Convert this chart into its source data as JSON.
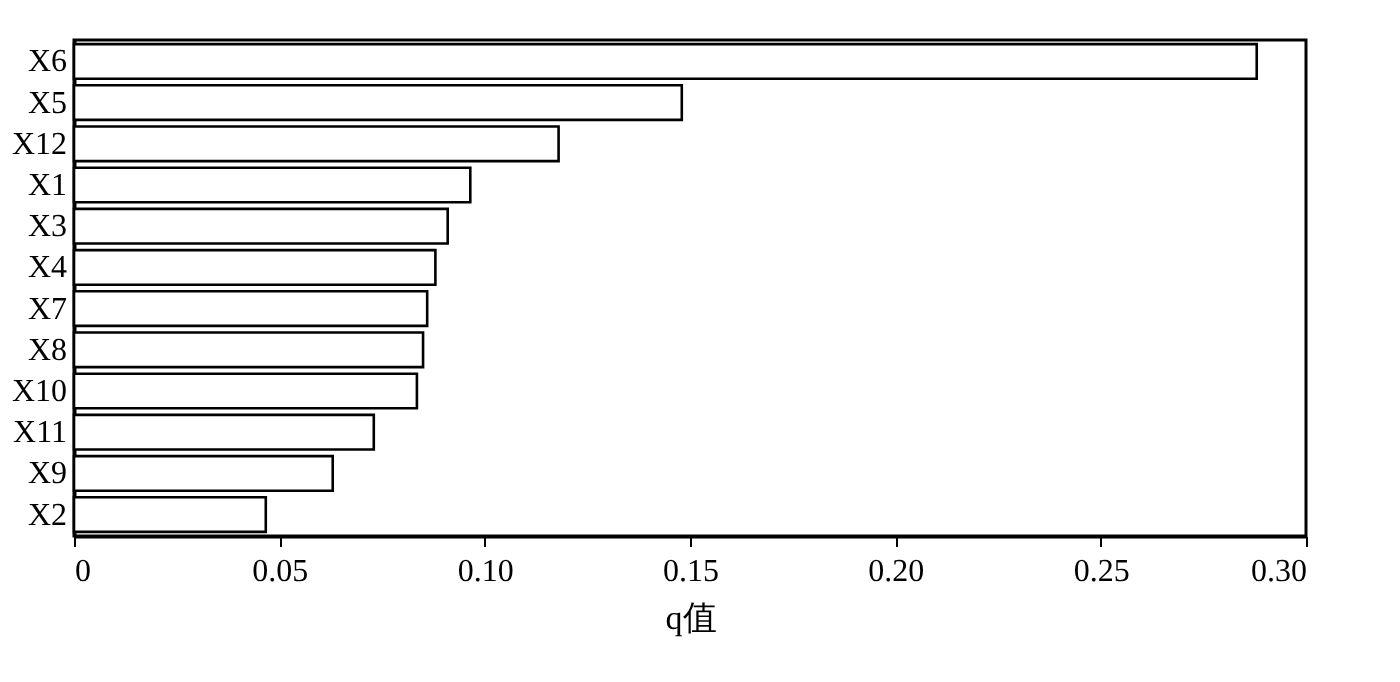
{
  "chart_data": {
    "type": "bar",
    "orientation": "horizontal",
    "xlabel": "q值",
    "categories": [
      "X6",
      "X5",
      "X12",
      "X1",
      "X3",
      "X4",
      "X7",
      "X8",
      "X10",
      "X11",
      "X9",
      "X2"
    ],
    "values": [
      0.288,
      0.148,
      0.118,
      0.0965,
      0.091,
      0.088,
      0.086,
      0.085,
      0.0835,
      0.073,
      0.063,
      0.0467
    ],
    "color": "#ffffff",
    "xlim": [
      0,
      0.3
    ],
    "xticks": [
      {
        "value": 0,
        "label": "0"
      },
      {
        "value": 0.05,
        "label": "0.05"
      },
      {
        "value": 0.1,
        "label": "0.10"
      },
      {
        "value": 0.15,
        "label": "0.15"
      },
      {
        "value": 0.2,
        "label": "0.20"
      },
      {
        "value": 0.25,
        "label": "0.25"
      },
      {
        "value": 0.3,
        "label": "0.30"
      }
    ],
    "grid": false
  }
}
